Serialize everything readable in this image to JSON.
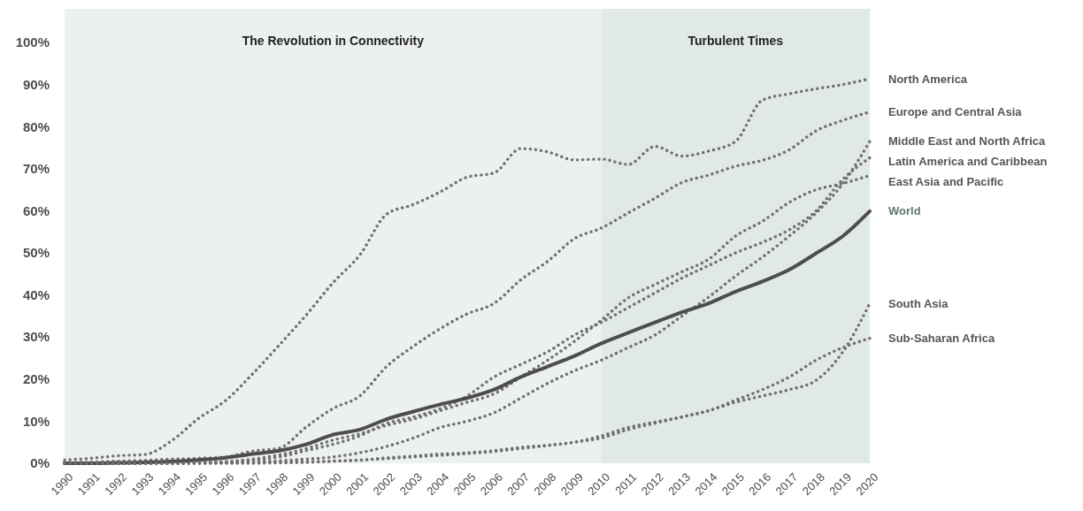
{
  "chart_data": {
    "type": "line",
    "x": [
      1990,
      1991,
      1992,
      1993,
      1994,
      1995,
      1996,
      1997,
      1998,
      1999,
      2000,
      2001,
      2002,
      2003,
      2004,
      2005,
      2006,
      2007,
      2008,
      2009,
      2010,
      2011,
      2012,
      2013,
      2014,
      2015,
      2016,
      2017,
      2018,
      2019,
      2020
    ],
    "xlim": [
      1990,
      2020
    ],
    "xticks": [
      1990,
      1991,
      1992,
      1993,
      1994,
      1995,
      1996,
      1997,
      1998,
      1999,
      2000,
      2001,
      2002,
      2003,
      2004,
      2005,
      2006,
      2007,
      2008,
      2009,
      2010,
      2011,
      2012,
      2013,
      2014,
      2015,
      2016,
      2017,
      2018,
      2019,
      2020
    ],
    "ylim": [
      0,
      108
    ],
    "yticks": [
      {
        "value": 0,
        "label": "0%"
      },
      {
        "value": 10,
        "label": "10%"
      },
      {
        "value": 20,
        "label": "20%"
      },
      {
        "value": 30,
        "label": "30%"
      },
      {
        "value": 40,
        "label": "40%"
      },
      {
        "value": 50,
        "label": "50%"
      },
      {
        "value": 60,
        "label": "60%"
      },
      {
        "value": 70,
        "label": "70%"
      },
      {
        "value": 80,
        "label": "80%"
      },
      {
        "value": 90,
        "label": "90%"
      },
      {
        "value": 100,
        "label": "100%"
      }
    ],
    "grid": false,
    "legend": false,
    "marker": "none",
    "bands": [
      {
        "axis": "x",
        "from": 1990,
        "to": 2010,
        "label": "The Revolution in Connectivity",
        "color": "#ecf0ef"
      },
      {
        "axis": "x",
        "from": 2010,
        "to": 2020,
        "label": "Turbulent Times",
        "color": "#e1e9e6"
      }
    ],
    "series": [
      {
        "name": "North America",
        "color": "#707070",
        "line_style": "dotted",
        "values": [
          0.8,
          1.2,
          1.8,
          2.1,
          5.4,
          10.7,
          14.9,
          21.2,
          28.1,
          35.2,
          42.9,
          49.5,
          59.2,
          61.5,
          64.5,
          68,
          69,
          74.8,
          74,
          72.1,
          72.3,
          71,
          75.3,
          73,
          74.2,
          76.5,
          86.3,
          87.8,
          89,
          90,
          91.4
        ]
      },
      {
        "name": "Europe and Central Asia",
        "color": "#707070",
        "line_style": "dotted",
        "values": [
          0.2,
          0.3,
          0.5,
          0.7,
          1,
          1.2,
          1.5,
          2.9,
          3.6,
          8.6,
          13,
          16,
          23,
          27.8,
          32,
          35.5,
          38,
          43.6,
          48,
          53.4,
          55.9,
          59.5,
          63,
          66.7,
          68.5,
          70.6,
          72,
          74.5,
          79,
          81.5,
          83.5
        ]
      },
      {
        "name": "Middle East and North Africa",
        "color": "#707070",
        "line_style": "dotted",
        "values": [
          0,
          0,
          0,
          0,
          0,
          0,
          0.1,
          0.3,
          0.6,
          1,
          1.5,
          2.5,
          4,
          6,
          8.5,
          10,
          12,
          15.5,
          19,
          22,
          24.5,
          27.5,
          30.5,
          35,
          39.5,
          44.5,
          49,
          54,
          59.5,
          66.5,
          76.5
        ]
      },
      {
        "name": "Latin America and Caribbean",
        "color": "#707070",
        "line_style": "dotted",
        "values": [
          0,
          0,
          0,
          0,
          0,
          0.1,
          0.3,
          0.7,
          1.5,
          3,
          4.5,
          6.5,
          9.5,
          11,
          13,
          16,
          20.5,
          23.5,
          26.5,
          30.5,
          33.5,
          37,
          40.5,
          44,
          47,
          50,
          52.5,
          55.5,
          60,
          67.5,
          72.6
        ]
      },
      {
        "name": "East Asia and Pacific",
        "color": "#707070",
        "line_style": "dotted",
        "values": [
          0,
          0,
          0,
          0,
          0,
          0.1,
          0.4,
          1,
          2,
          3.5,
          5.5,
          7,
          9,
          10.5,
          12.5,
          14.5,
          16.5,
          20.5,
          24.5,
          29,
          34,
          39.3,
          42.5,
          45.5,
          48.5,
          54,
          57.5,
          62,
          65,
          66.5,
          68.4
        ]
      },
      {
        "name": "World",
        "color": "#4d4d4d",
        "line_style": "solid",
        "values": [
          0,
          0,
          0.1,
          0.2,
          0.4,
          0.8,
          1.3,
          2.2,
          3,
          4.5,
          6.8,
          8,
          10.5,
          12.3,
          14,
          15.5,
          17.5,
          20.5,
          23,
          25.5,
          28.5,
          31,
          33.5,
          35.9,
          38,
          40.8,
          43.2,
          46,
          49.9,
          54,
          59.9
        ]
      },
      {
        "name": "South Asia",
        "color": "#707070",
        "line_style": "dotted",
        "values": [
          0,
          0,
          0,
          0,
          0,
          0,
          0,
          0,
          0.1,
          0.2,
          0.5,
          0.7,
          1.3,
          1.7,
          2.2,
          2.5,
          3,
          3.8,
          4.3,
          5,
          6,
          8,
          9.5,
          11,
          12.5,
          14.5,
          16,
          17.5,
          19.7,
          26.5,
          38
        ]
      },
      {
        "name": "Sub-Saharan Africa",
        "color": "#707070",
        "line_style": "dotted",
        "values": [
          0,
          0,
          0,
          0,
          0,
          0.1,
          0.1,
          0.2,
          0.3,
          0.4,
          0.5,
          0.8,
          1.1,
          1.5,
          1.9,
          2.3,
          2.8,
          3.5,
          4.2,
          5,
          6.5,
          8.5,
          9.8,
          11,
          12.5,
          15,
          17.5,
          20.5,
          24.5,
          27.5,
          29.7
        ]
      }
    ]
  }
}
